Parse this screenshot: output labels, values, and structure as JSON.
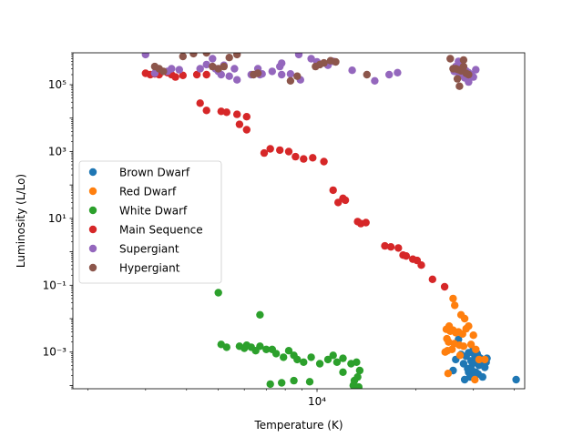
{
  "chart_data": {
    "type": "scatter",
    "title": "",
    "xlabel": "Temperature (K)",
    "ylabel": "Luminosity (L/Lo)",
    "xscale": "log",
    "yscale": "log",
    "xlim": [
      1800,
      43000
    ],
    "ylim": [
      8e-05,
      900000
    ],
    "x_ticks": [
      {
        "value": 10000,
        "label": "10⁴"
      }
    ],
    "y_ticks": [
      {
        "value": 0.001,
        "label": "10⁻³"
      },
      {
        "value": 0.1,
        "label": "10⁻¹"
      },
      {
        "value": 10,
        "label": "10¹"
      },
      {
        "value": 1000,
        "label": "10³"
      },
      {
        "value": 100000,
        "label": "10⁵"
      }
    ],
    "grid": false,
    "legend_position": "center-left",
    "series": [
      {
        "name": "Brown Dwarf",
        "color": "#1f77b4",
        "points": [
          [
            27000,
            0.0024
          ],
          [
            28500,
            0.00075
          ],
          [
            29000,
            0.00095
          ],
          [
            29500,
            0.00055
          ],
          [
            30000,
            0.0012
          ],
          [
            30200,
            0.00085
          ],
          [
            30500,
            0.0006
          ],
          [
            29800,
            0.00045
          ],
          [
            31000,
            0.00075
          ],
          [
            31500,
            0.00065
          ],
          [
            31200,
            0.0004
          ],
          [
            32000,
            0.00055
          ],
          [
            32500,
            0.00035
          ],
          [
            33000,
            0.00065
          ],
          [
            29000,
            0.00025
          ],
          [
            28000,
            0.00045
          ],
          [
            30500,
            0.00025
          ],
          [
            28200,
            0.00015
          ],
          [
            29300,
            0.00018
          ],
          [
            30000,
            0.00022
          ],
          [
            31000,
            0.00022
          ],
          [
            32000,
            0.00018
          ],
          [
            27500,
            0.00085
          ],
          [
            26500,
            0.0006
          ],
          [
            26000,
            0.00028
          ],
          [
            40500,
            0.00015
          ],
          [
            30800,
            0.0009
          ],
          [
            31800,
            0.0005
          ],
          [
            32800,
            0.0005
          ],
          [
            28800,
            0.00032
          ],
          [
            29600,
            0.0003
          ]
        ]
      },
      {
        "name": "Red Dwarf",
        "color": "#ff7f0e",
        "points": [
          [
            26000,
            0.04
          ],
          [
            26300,
            0.025
          ],
          [
            27500,
            0.013
          ],
          [
            28200,
            0.01
          ],
          [
            25300,
            0.006
          ],
          [
            24800,
            0.0048
          ],
          [
            25500,
            0.0042
          ],
          [
            26000,
            0.0045
          ],
          [
            26500,
            0.0038
          ],
          [
            27000,
            0.004
          ],
          [
            27800,
            0.0035
          ],
          [
            28500,
            0.005
          ],
          [
            29000,
            0.006
          ],
          [
            30000,
            0.0032
          ],
          [
            24900,
            0.0025
          ],
          [
            25200,
            0.002
          ],
          [
            26200,
            0.0018
          ],
          [
            27200,
            0.0016
          ],
          [
            28000,
            0.0015
          ],
          [
            25000,
            0.0011
          ],
          [
            25800,
            0.0012
          ],
          [
            29500,
            0.0017
          ],
          [
            30500,
            0.0012
          ],
          [
            24600,
            0.001
          ],
          [
            27300,
            0.0008
          ],
          [
            31200,
            0.0006
          ],
          [
            32500,
            0.0006
          ],
          [
            25100,
            0.00023
          ],
          [
            30300,
            0.00015
          ]
        ]
      },
      {
        "name": "White Dwarf",
        "color": "#2ca02c",
        "points": [
          [
            5000,
            0.06
          ],
          [
            6700,
            0.013
          ],
          [
            5100,
            0.0017
          ],
          [
            5300,
            0.0014
          ],
          [
            5800,
            0.0015
          ],
          [
            6100,
            0.0016
          ],
          [
            6000,
            0.0013
          ],
          [
            6300,
            0.0014
          ],
          [
            6500,
            0.0011
          ],
          [
            6700,
            0.0015
          ],
          [
            7000,
            0.0012
          ],
          [
            7300,
            0.0012
          ],
          [
            7500,
            0.0009
          ],
          [
            7900,
            0.0007
          ],
          [
            8200,
            0.0011
          ],
          [
            8500,
            0.0008
          ],
          [
            8700,
            0.0006
          ],
          [
            9100,
            0.0005
          ],
          [
            9600,
            0.0007
          ],
          [
            10200,
            0.00045
          ],
          [
            10800,
            0.0006
          ],
          [
            11200,
            0.0008
          ],
          [
            11500,
            0.0005
          ],
          [
            12000,
            0.00065
          ],
          [
            12700,
            0.00045
          ],
          [
            13200,
            0.0005
          ],
          [
            13500,
            0.00028
          ],
          [
            12000,
            0.00025
          ],
          [
            13000,
            0.00014
          ],
          [
            13300,
            0.00018
          ],
          [
            7200,
            0.00011
          ],
          [
            7800,
            0.00012
          ],
          [
            8500,
            0.00014
          ],
          [
            9500,
            0.00013
          ],
          [
            12900,
            0.0001
          ],
          [
            13400,
            9e-05
          ]
        ]
      },
      {
        "name": "Main Sequence",
        "color": "#d62728",
        "points": [
          [
            3000,
            220000
          ],
          [
            3100,
            200000
          ],
          [
            3200,
            210000
          ],
          [
            3300,
            200000
          ],
          [
            3500,
            230000
          ],
          [
            3600,
            200000
          ],
          [
            3700,
            170000
          ],
          [
            3900,
            190000
          ],
          [
            4300,
            200000
          ],
          [
            4600,
            200000
          ],
          [
            4400,
            28000
          ],
          [
            4600,
            17000
          ],
          [
            5100,
            16000
          ],
          [
            5300,
            15000
          ],
          [
            5700,
            13000
          ],
          [
            6100,
            11000
          ],
          [
            5800,
            6500
          ],
          [
            6100,
            4500
          ],
          [
            6900,
            900
          ],
          [
            7200,
            1200
          ],
          [
            7700,
            1100
          ],
          [
            8200,
            1000
          ],
          [
            8600,
            700
          ],
          [
            9100,
            600
          ],
          [
            9700,
            650
          ],
          [
            10500,
            500
          ],
          [
            11200,
            70
          ],
          [
            11600,
            30
          ],
          [
            12000,
            40
          ],
          [
            12200,
            35
          ],
          [
            13300,
            8
          ],
          [
            13600,
            7
          ],
          [
            14100,
            7.5
          ],
          [
            16100,
            1.5
          ],
          [
            16800,
            1.4
          ],
          [
            17700,
            1.3
          ],
          [
            18300,
            0.8
          ],
          [
            18700,
            0.75
          ],
          [
            19600,
            0.6
          ],
          [
            20200,
            0.55
          ],
          [
            20800,
            0.4
          ],
          [
            22500,
            0.15
          ],
          [
            24500,
            0.09
          ]
        ]
      },
      {
        "name": "Supergiant",
        "color": "#9467bd",
        "points": [
          [
            3000,
            800000
          ],
          [
            3200,
            220000
          ],
          [
            3500,
            250000
          ],
          [
            3600,
            300000
          ],
          [
            3800,
            280000
          ],
          [
            4400,
            300000
          ],
          [
            4600,
            400000
          ],
          [
            4800,
            600000
          ],
          [
            4900,
            300000
          ],
          [
            5000,
            250000
          ],
          [
            5100,
            200000
          ],
          [
            5200,
            380000
          ],
          [
            5400,
            180000
          ],
          [
            5600,
            300000
          ],
          [
            5700,
            140000
          ],
          [
            6300,
            200000
          ],
          [
            6700,
            200000
          ],
          [
            6800,
            210000
          ],
          [
            6600,
            300000
          ],
          [
            7300,
            250000
          ],
          [
            7700,
            350000
          ],
          [
            7800,
            440000
          ],
          [
            7800,
            200000
          ],
          [
            8300,
            210000
          ],
          [
            8900,
            140000
          ],
          [
            8800,
            800000
          ],
          [
            9600,
            600000
          ],
          [
            10000,
            480000
          ],
          [
            10200,
            400000
          ],
          [
            10800,
            380000
          ],
          [
            11200,
            500000
          ],
          [
            12800,
            270000
          ],
          [
            15000,
            130000
          ],
          [
            16600,
            200000
          ],
          [
            17600,
            230000
          ],
          [
            27000,
            500000
          ],
          [
            27500,
            400000
          ],
          [
            28000,
            300000
          ],
          [
            28500,
            260000
          ],
          [
            29000,
            230000
          ],
          [
            29500,
            200000
          ],
          [
            30000,
            170000
          ],
          [
            30500,
            280000
          ],
          [
            26500,
            350000
          ],
          [
            26200,
            250000
          ],
          [
            27200,
            200000
          ],
          [
            28200,
            160000
          ],
          [
            29000,
            120000
          ]
        ]
      },
      {
        "name": "Hypergiant",
        "color": "#8c564b",
        "points": [
          [
            3200,
            350000
          ],
          [
            3300,
            300000
          ],
          [
            3400,
            250000
          ],
          [
            3900,
            700000
          ],
          [
            4200,
            850000
          ],
          [
            4600,
            900000
          ],
          [
            4800,
            350000
          ],
          [
            5000,
            300000
          ],
          [
            5200,
            350000
          ],
          [
            5400,
            650000
          ],
          [
            5700,
            800000
          ],
          [
            6400,
            200000
          ],
          [
            6600,
            220000
          ],
          [
            8300,
            130000
          ],
          [
            8700,
            180000
          ],
          [
            9900,
            350000
          ],
          [
            10200,
            400000
          ],
          [
            10500,
            450000
          ],
          [
            11000,
            520000
          ],
          [
            11400,
            480000
          ],
          [
            14200,
            200000
          ],
          [
            25500,
            600000
          ],
          [
            26000,
            300000
          ],
          [
            26500,
            300000
          ],
          [
            27000,
            280000
          ],
          [
            27500,
            260000
          ],
          [
            28000,
            350000
          ],
          [
            28500,
            220000
          ],
          [
            29000,
            200000
          ],
          [
            27200,
            90000
          ],
          [
            26800,
            150000
          ],
          [
            28000,
            550000
          ]
        ]
      }
    ]
  }
}
